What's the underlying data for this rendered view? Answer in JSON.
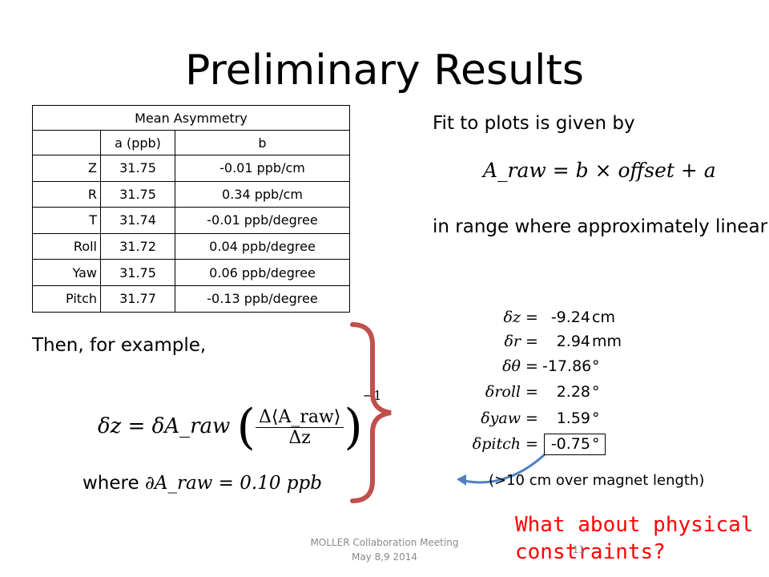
{
  "slide": {
    "title": "Preliminary Results",
    "table": {
      "caption": "Mean Asymmetry",
      "headers": [
        "",
        "a (ppb)",
        "b"
      ],
      "rows": [
        [
          "Z",
          "31.75",
          "-0.01 ppb/cm"
        ],
        [
          "R",
          "31.75",
          "0.34 ppb/cm"
        ],
        [
          "T",
          "31.74",
          "-0.01 ppb/degree"
        ],
        [
          "Roll",
          "31.72",
          "0.04 ppb/degree"
        ],
        [
          "Yaw",
          "31.75",
          "0.06 ppb/degree"
        ],
        [
          "Pitch",
          "31.77",
          "-0.13 ppb/degree"
        ]
      ]
    },
    "fit_text": "Fit to plots is given by",
    "fit_equation": "A_raw = b × offset + a",
    "range_text": "in range where approximately linear",
    "then_text": "Then, for example,",
    "example_equation": {
      "lhs": "δz = δA_raw",
      "numerator": "Δ⟨A_raw⟩",
      "denominator": "Δz",
      "exponent": "−1"
    },
    "where_label": "where",
    "where_equation": "∂A_raw = 0.10 ppb",
    "results": [
      {
        "symbol": "δz",
        "value": "-9.24",
        "unit": "cm"
      },
      {
        "symbol": "δr",
        "value": "2.94",
        "unit": "mm"
      },
      {
        "symbol": "δθ",
        "value": "-17.86",
        "unit": "°"
      },
      {
        "symbol": "δroll",
        "value": "2.28",
        "unit": "°"
      },
      {
        "symbol": "δyaw",
        "value": "1.59",
        "unit": "°"
      },
      {
        "symbol": "δpitch",
        "value": "-0.75",
        "unit": "°"
      }
    ],
    "note": "(>10 cm over magnet length)",
    "question": "What about physical constraints?",
    "footer": [
      "MOLLER Collaboration Meeting",
      "May 8,9 2014"
    ],
    "page_number": "11",
    "colors": {
      "brace": "#c0504d",
      "arrow": "#4f81bd",
      "question": "#ff0000"
    }
  }
}
